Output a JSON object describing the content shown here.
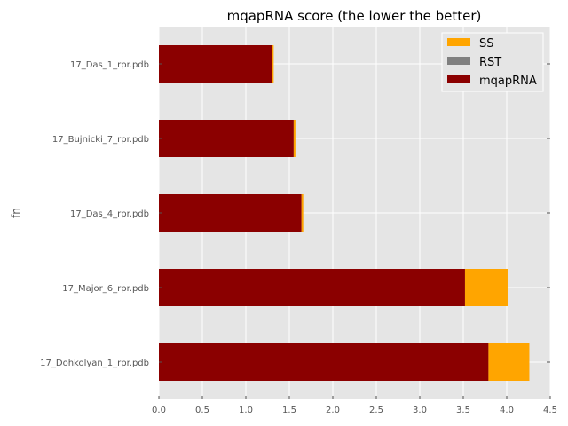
{
  "chart_data": {
    "type": "bar",
    "orientation": "horizontal",
    "stacked": true,
    "title": "mqapRNA score (the lower the better)",
    "xlabel": "",
    "ylabel": "fn",
    "categories": [
      "17_Dohkolyan_1_rpr.pdb",
      "17_Major_6_rpr.pdb",
      "17_Das_4_rpr.pdb",
      "17_Bujnicki_7_rpr.pdb",
      "17_Das_1_rpr.pdb"
    ],
    "series": [
      {
        "name": "mqapRNA",
        "color": "#8b0000",
        "values": [
          3.79,
          3.52,
          1.64,
          1.55,
          1.3
        ]
      },
      {
        "name": "RST",
        "color": "#808080",
        "values": [
          0.0,
          0.0,
          0.0,
          0.0,
          0.0
        ]
      },
      {
        "name": "SS",
        "color": "#ffa500",
        "values": [
          0.47,
          0.49,
          0.02,
          0.02,
          0.02
        ]
      }
    ],
    "legend_order": [
      "SS",
      "RST",
      "mqapRNA"
    ],
    "xlim": [
      0,
      4.5
    ],
    "xticks": [
      "0.0",
      "0.5",
      "1.0",
      "1.5",
      "2.0",
      "2.5",
      "3.0",
      "3.5",
      "4.0",
      "4.5"
    ],
    "grid": true,
    "legend_position": "upper-right",
    "style": "ggplot"
  }
}
